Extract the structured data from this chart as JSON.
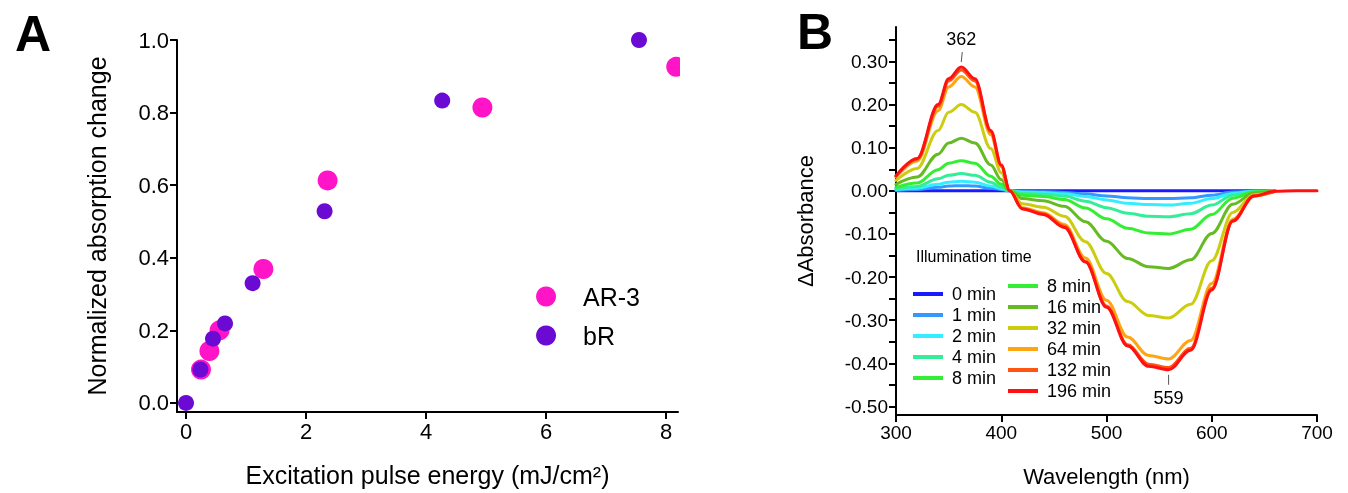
{
  "chart_data": [
    {
      "type": "scatter",
      "title": "A",
      "xlabel": "Excitation pulse energy (mJ/cm²)",
      "ylabel": "Normalized absorption change",
      "xlim": [
        -0.15,
        8.2
      ],
      "xticks": [
        0,
        2,
        4,
        6,
        8
      ],
      "ylim": [
        -0.025,
        1.0
      ],
      "yticks": [
        {
          "value": 0,
          "label": "0.0"
        },
        {
          "value": 0.2,
          "label": "0.2"
        },
        {
          "value": 0.4,
          "label": "0.4"
        },
        {
          "value": 0.6,
          "label": "0.6"
        },
        {
          "value": 0.8,
          "label": "0.8"
        },
        {
          "value": 1.0,
          "label": "1.0"
        }
      ],
      "marker": "circle",
      "legend": "bottom right",
      "series": [
        {
          "name": "AR-3",
          "color": "#ff14c8",
          "x": [
            0.25,
            0.39,
            0.56,
            1.29,
            2.36,
            4.94,
            8.17
          ],
          "values": [
            0.092,
            0.143,
            0.2,
            0.369,
            0.613,
            0.814,
            0.926
          ]
        },
        {
          "name": "bR",
          "color": "#6a0ad2",
          "x": [
            0,
            0.24,
            0.45,
            0.65,
            1.11,
            2.31,
            4.27,
            7.55
          ],
          "values": [
            0,
            0.092,
            0.177,
            0.219,
            0.33,
            0.528,
            0.833,
            1.0
          ]
        }
      ]
    },
    {
      "type": "line",
      "title": "B",
      "xlabel": "Wavelength (nm)",
      "ylabel": "ΔAbsorbance",
      "legend_title": "Illumination time",
      "xlim": [
        300,
        700
      ],
      "xticks": [
        300,
        400,
        500,
        600,
        700
      ],
      "ylim": [
        -0.52,
        0.38
      ],
      "yticks": [
        {
          "value": -0.5,
          "label": "-0.50"
        },
        {
          "value": -0.45,
          "label": null
        },
        {
          "value": -0.4,
          "label": "-0.40"
        },
        {
          "value": -0.35,
          "label": null
        },
        {
          "value": -0.3,
          "label": "-0.30"
        },
        {
          "value": -0.25,
          "label": null
        },
        {
          "value": -0.2,
          "label": "-0.20"
        },
        {
          "value": -0.15,
          "label": null
        },
        {
          "value": -0.1,
          "label": "-0.10"
        },
        {
          "value": -0.05,
          "label": null
        },
        {
          "value": 0,
          "label": "0.00"
        },
        {
          "value": 0.05,
          "label": null
        },
        {
          "value": 0.1,
          "label": "0.10"
        },
        {
          "value": 0.15,
          "label": null
        },
        {
          "value": 0.2,
          "label": "0.20"
        },
        {
          "value": 0.25,
          "label": null
        },
        {
          "value": 0.3,
          "label": "0.30"
        },
        {
          "value": 0.35,
          "label": null
        }
      ],
      "marker": "none",
      "line_style": "solid",
      "legend": "bottom left",
      "x": [
        300,
        320,
        340,
        350,
        362,
        375,
        390,
        400,
        408,
        420,
        440,
        460,
        480,
        500,
        520,
        540,
        559,
        580,
        600,
        620,
        640,
        660,
        680,
        700
      ],
      "annotations": [
        {
          "text": "362",
          "x": 362,
          "y": 0.287
        },
        {
          "text": "559",
          "x": 559,
          "y": -0.415
        }
      ],
      "series": [
        {
          "name": "0 min",
          "color": "#1a1aff",
          "values": [
            0,
            0,
            0,
            0,
            0,
            0,
            0,
            0,
            0,
            0,
            0,
            0,
            0,
            0,
            0,
            0,
            0,
            0,
            0,
            0,
            0,
            0,
            null,
            null
          ]
        },
        {
          "name": "1 min",
          "color": "#3399ff",
          "values": [
            0.001,
            0.003,
            0.008,
            0.011,
            0.012,
            0.011,
            0.006,
            0.003,
            0,
            -0.002,
            -0.002,
            -0.004,
            -0.007,
            -0.012,
            -0.016,
            -0.018,
            -0.018,
            -0.016,
            -0.01,
            -0.003,
            -0.001,
            0,
            null,
            null
          ]
        },
        {
          "name": "2 min",
          "color": "#33eeff",
          "values": [
            0.003,
            0.006,
            0.015,
            0.02,
            0.022,
            0.02,
            0.011,
            0.005,
            0,
            -0.003,
            -0.004,
            -0.007,
            -0.013,
            -0.021,
            -0.029,
            -0.032,
            -0.033,
            -0.029,
            -0.018,
            -0.006,
            -0.001,
            0,
            null,
            null
          ]
        },
        {
          "name": "4 min",
          "color": "#33ee99",
          "values": [
            0.005,
            0.01,
            0.028,
            0.036,
            0.04,
            0.036,
            0.02,
            0.008,
            0,
            -0.006,
            -0.008,
            -0.012,
            -0.024,
            -0.039,
            -0.052,
            -0.059,
            -0.06,
            -0.053,
            -0.033,
            -0.01,
            -0.002,
            0,
            null,
            null
          ]
        },
        {
          "name": "8 min",
          "color": "#33ee33",
          "values": [
            null,
            null,
            null,
            null,
            null,
            null,
            null,
            null,
            null,
            null,
            null,
            null,
            null,
            null,
            null,
            null,
            null,
            null,
            null,
            null,
            null,
            null,
            null,
            null
          ]
        },
        {
          "name": "8 min",
          "color": "#33ee33",
          "values": [
            0.008,
            0.018,
            0.049,
            0.064,
            0.07,
            0.064,
            0.034,
            0.015,
            0,
            -0.01,
            -0.013,
            -0.02,
            -0.04,
            -0.065,
            -0.087,
            -0.098,
            -0.1,
            -0.089,
            -0.055,
            -0.017,
            -0.003,
            0,
            null,
            null
          ]
        },
        {
          "name": "16 min",
          "color": "#66bb22",
          "values": [
            0.015,
            0.032,
            0.085,
            0.111,
            0.122,
            0.111,
            0.06,
            0.026,
            0,
            -0.018,
            -0.023,
            -0.036,
            -0.072,
            -0.117,
            -0.157,
            -0.176,
            -0.18,
            -0.16,
            -0.099,
            -0.031,
            -0.005,
            0,
            null,
            null
          ]
        },
        {
          "name": "32 min",
          "color": "#cccc11",
          "values": [
            0.024,
            0.052,
            0.14,
            0.182,
            0.2,
            0.182,
            0.098,
            0.042,
            0,
            -0.03,
            -0.038,
            -0.059,
            -0.118,
            -0.192,
            -0.257,
            -0.289,
            -0.295,
            -0.263,
            -0.162,
            -0.05,
            -0.009,
            -0.001,
            null,
            null
          ]
        },
        {
          "name": "64 min",
          "color": "#ffa511",
          "values": [
            0.032,
            0.069,
            0.186,
            0.241,
            0.265,
            0.241,
            0.13,
            0.056,
            0,
            -0.039,
            -0.051,
            -0.078,
            -0.156,
            -0.254,
            -0.339,
            -0.382,
            -0.39,
            -0.347,
            -0.215,
            -0.066,
            -0.012,
            -0.001,
            null,
            null
          ]
        },
        {
          "name": "132 min",
          "color": "#ff5511",
          "values": [
            0.034,
            0.073,
            0.196,
            0.255,
            0.28,
            0.255,
            0.137,
            0.059,
            0,
            -0.041,
            -0.053,
            -0.082,
            -0.164,
            -0.267,
            -0.357,
            -0.402,
            -0.41,
            -0.365,
            -0.226,
            -0.07,
            -0.012,
            -0.001,
            null,
            null
          ]
        },
        {
          "name": "196 min",
          "color": "#ff1111",
          "values": [
            0.035,
            0.075,
            0.2,
            0.26,
            0.287,
            0.26,
            0.14,
            0.06,
            0,
            -0.042,
            -0.055,
            -0.085,
            -0.165,
            -0.27,
            -0.36,
            -0.407,
            -0.415,
            -0.37,
            -0.23,
            -0.07,
            -0.012,
            -0.001,
            0,
            0
          ]
        }
      ]
    }
  ]
}
